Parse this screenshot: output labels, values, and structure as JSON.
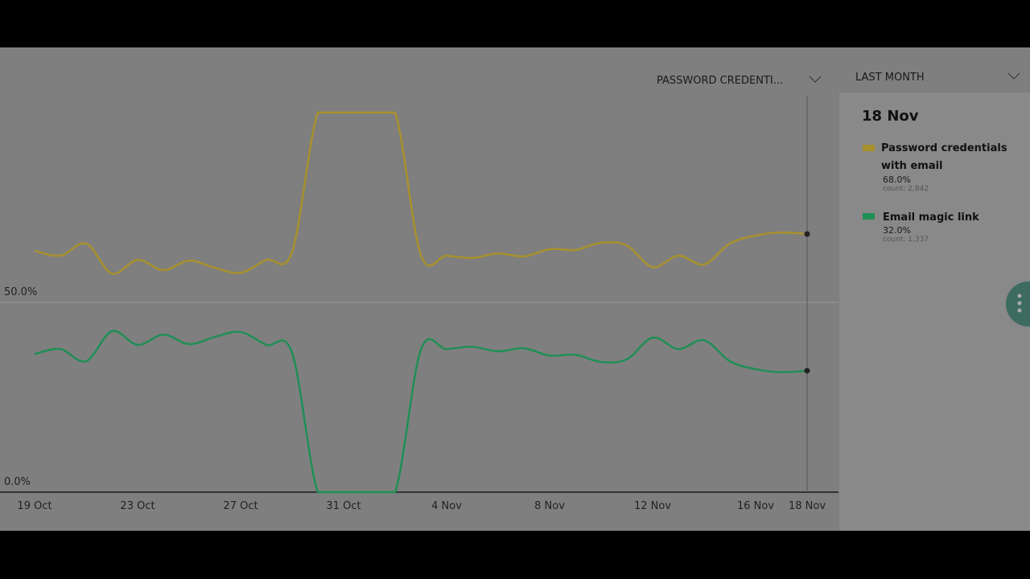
{
  "controls": {
    "metric_dropdown": "PASSWORD CREDENTI...",
    "range_dropdown": "LAST MONTH"
  },
  "tooltip": {
    "entries": [
      {
        "share": "68.0%",
        "count": "count: 2,842"
      },
      {
        "share": "32.0%",
        "count": "count: 1,337"
      }
    ]
  },
  "chart_data": {
    "type": "line",
    "categories": [
      "19 Oct",
      null,
      null,
      null,
      "23 Oct",
      null,
      null,
      null,
      "27 Oct",
      null,
      null,
      null,
      "31 Oct",
      null,
      null,
      null,
      "4 Nov",
      null,
      null,
      null,
      "8 Nov",
      null,
      null,
      null,
      "12 Nov",
      null,
      null,
      null,
      "16 Nov",
      null,
      "18 Nov"
    ],
    "series": [
      {
        "name": "Password credentials with email",
        "color": "#a8912c",
        "values": [
          63.6,
          62.3,
          65.5,
          57.6,
          61.2,
          58.5,
          61.0,
          59.1,
          57.8,
          61.2,
          63.3,
          100,
          100,
          100,
          100,
          62.5,
          62.3,
          61.7,
          62.9,
          62.1,
          64.0,
          63.8,
          65.7,
          65.0,
          59.3,
          62.3,
          60.0,
          65.5,
          67.6,
          68.4,
          68.0
        ]
      },
      {
        "name": "Email magic link",
        "color": "#1f8f55",
        "values": [
          36.4,
          37.7,
          34.5,
          42.4,
          38.8,
          41.5,
          39.0,
          40.9,
          42.2,
          38.8,
          36.7,
          0,
          0,
          0,
          0,
          37.5,
          37.7,
          38.3,
          37.1,
          37.9,
          36.0,
          36.2,
          34.3,
          35.0,
          40.7,
          37.7,
          40.0,
          34.5,
          32.4,
          31.6,
          32.0
        ]
      }
    ],
    "ylim": [
      0,
      100
    ],
    "yticks": [
      {
        "value": 0,
        "label": "0.0%"
      },
      {
        "value": 50,
        "label": "50.0%"
      }
    ],
    "grid": true
  }
}
